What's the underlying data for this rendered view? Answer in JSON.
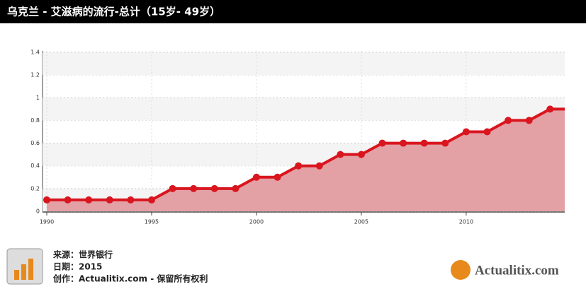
{
  "chart_data": {
    "type": "line",
    "title": "乌克兰 - 艾滋病的流行-总计（15岁- 49岁）",
    "x": [
      1990,
      1991,
      1992,
      1993,
      1994,
      1995,
      1996,
      1997,
      1998,
      1999,
      2000,
      2001,
      2002,
      2003,
      2004,
      2005,
      2006,
      2007,
      2008,
      2009,
      2010,
      2011,
      2012,
      2013,
      2014
    ],
    "series": [
      {
        "color": "#d9151e",
        "values": [
          0.1,
          0.1,
          0.1,
          0.1,
          0.1,
          0.1,
          0.2,
          0.2,
          0.2,
          0.2,
          0.3,
          0.3,
          0.4,
          0.4,
          0.5,
          0.5,
          0.6,
          0.6,
          0.6,
          0.6,
          0.7,
          0.7,
          0.8,
          0.8,
          0.9
        ]
      }
    ],
    "area_color": "#e3a0a5",
    "xlim": [
      1990,
      2014.7
    ],
    "xticks": [
      1990,
      1995,
      2000,
      2005,
      2010
    ],
    "ylim": [
      0,
      1.4
    ],
    "yticks": [
      0,
      0.2,
      0.4,
      0.6,
      0.8,
      1,
      1.2,
      1.4
    ],
    "grid": true
  },
  "footer": {
    "source": "来源：世界银行",
    "date": "日期：2015",
    "credit": "创作：Actualitix.com - 保留所有权利",
    "logo": "Actualitix.com"
  }
}
